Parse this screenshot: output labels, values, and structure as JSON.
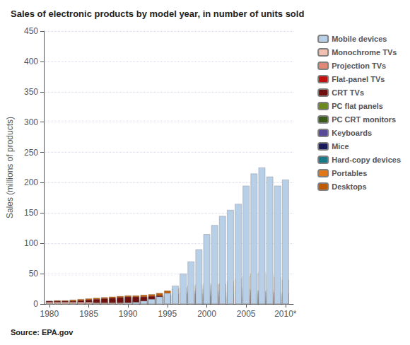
{
  "chart_data": {
    "type": "bar",
    "title": "Sales of electronic products by model year, in number of units sold",
    "ylabel": "Sales (millions of products)",
    "annotations": [
      "Source: EPA.gov"
    ],
    "stacked": true,
    "grid": true,
    "legend": "upper right",
    "x": [
      1980,
      1981,
      1982,
      1983,
      1984,
      1985,
      1986,
      1987,
      1988,
      1989,
      1990,
      1991,
      1992,
      1993,
      1994,
      1995,
      1996,
      1997,
      1998,
      1999,
      2000,
      2001,
      2002,
      2003,
      2004,
      2005,
      2006,
      2007,
      2008,
      2009,
      2010
    ],
    "xlim": [
      1979.3,
      2011.0
    ],
    "xticks": [
      1980,
      1985,
      1990,
      1995,
      2000,
      2005,
      {
        "value": 2010,
        "label": "2010*"
      }
    ],
    "ylim": [
      0,
      450
    ],
    "yticks": [
      0,
      50,
      100,
      150,
      200,
      250,
      300,
      350,
      400,
      450
    ],
    "series": [
      {
        "name": "Desktops",
        "color": "#c05a00",
        "values": [
          5,
          6,
          6,
          7,
          8,
          9,
          10,
          11,
          12,
          13,
          14,
          14,
          15,
          16,
          18,
          22,
          25,
          27,
          30,
          32,
          35,
          33,
          32,
          30,
          28,
          26,
          24,
          22,
          20,
          17,
          15
        ]
      },
      {
        "name": "Portables",
        "color": "#e07818",
        "values": [
          0,
          0,
          1,
          1,
          1,
          2,
          2,
          3,
          3,
          4,
          5,
          6,
          7,
          8,
          10,
          12,
          15,
          18,
          22,
          26,
          30,
          32,
          34,
          38,
          42,
          46,
          50,
          53,
          48,
          44,
          40
        ]
      },
      {
        "name": "Hard-copy devices",
        "color": "#1a7a8a",
        "values": [
          0,
          0,
          1,
          1,
          1,
          1,
          2,
          2,
          3,
          4,
          5,
          6,
          7,
          8,
          9,
          11,
          13,
          15,
          17,
          18,
          20,
          19,
          18,
          16,
          15,
          14,
          12,
          11,
          9,
          8,
          7
        ]
      },
      {
        "name": "Mice",
        "color": "#1a1a5a",
        "values": [
          0,
          0,
          0,
          1,
          1,
          1,
          2,
          2,
          3,
          3,
          4,
          4,
          5,
          5,
          6,
          7,
          8,
          9,
          10,
          11,
          12,
          11,
          10,
          9,
          9,
          8,
          8,
          7,
          7,
          6,
          6
        ]
      },
      {
        "name": "Keyboards",
        "color": "#5a4a9a",
        "values": [
          1,
          1,
          2,
          2,
          3,
          4,
          5,
          6,
          7,
          8,
          9,
          10,
          11,
          12,
          13,
          15,
          17,
          19,
          21,
          23,
          25,
          23,
          21,
          19,
          18,
          17,
          15,
          14,
          13,
          12,
          11
        ]
      },
      {
        "name": "PC CRT monitors",
        "color": "#3a5a1a",
        "values": [
          1,
          1,
          1,
          2,
          3,
          4,
          5,
          6,
          7,
          8,
          9,
          9,
          10,
          11,
          12,
          14,
          16,
          17,
          18,
          17,
          16,
          14,
          12,
          10,
          8,
          6,
          4,
          3,
          2,
          1,
          1
        ]
      },
      {
        "name": "PC flat panels",
        "color": "#6a8a20",
        "values": [
          0,
          0,
          0,
          0,
          0,
          0,
          0,
          0,
          0,
          0,
          0,
          0,
          0,
          0,
          0,
          1,
          2,
          3,
          5,
          8,
          12,
          15,
          18,
          20,
          22,
          24,
          22,
          20,
          18,
          16,
          15
        ]
      },
      {
        "name": "CRT TVs",
        "color": "#6e1010",
        "values": [
          5,
          5,
          5,
          5,
          6,
          7,
          8,
          9,
          10,
          11,
          12,
          12,
          12,
          13,
          14,
          15,
          16,
          16,
          17,
          16,
          15,
          14,
          13,
          12,
          10,
          8,
          6,
          4,
          3,
          2,
          2
        ]
      },
      {
        "name": "Flat-panel TVs",
        "color": "#c01010",
        "values": [
          0,
          0,
          0,
          0,
          0,
          0,
          0,
          0,
          0,
          0,
          0,
          0,
          0,
          0,
          0,
          0,
          0,
          0,
          0,
          1,
          2,
          3,
          5,
          7,
          10,
          14,
          18,
          22,
          24,
          20,
          18
        ]
      },
      {
        "name": "Projection TVs",
        "color": "#e08878",
        "values": [
          1,
          1,
          1,
          1,
          1,
          2,
          2,
          2,
          2,
          2,
          2,
          2,
          2,
          2,
          2,
          2,
          2,
          2,
          2,
          2,
          2,
          2,
          2,
          2,
          2,
          2,
          2,
          2,
          1,
          1,
          1
        ]
      },
      {
        "name": "Monochrome TVs",
        "color": "#f0c0b0",
        "values": [
          3,
          3,
          3,
          3,
          3,
          3,
          2,
          2,
          2,
          2,
          2,
          2,
          2,
          2,
          2,
          1,
          1,
          1,
          1,
          1,
          1,
          1,
          1,
          1,
          1,
          1,
          1,
          1,
          1,
          1,
          1
        ]
      },
      {
        "name": "Mobile devices",
        "color": "#b8cfe8",
        "values": [
          0,
          0,
          0,
          0,
          0,
          0,
          0,
          0,
          0,
          0,
          2,
          3,
          5,
          8,
          12,
          18,
          30,
          50,
          70,
          90,
          115,
          130,
          145,
          155,
          165,
          195,
          215,
          225,
          210,
          195,
          205
        ]
      }
    ]
  }
}
